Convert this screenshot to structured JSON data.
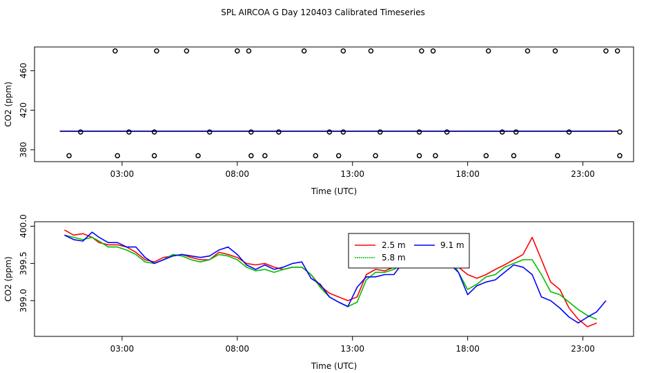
{
  "title": "SPL AIRCOA G  Day 120403  Calibrated Timeseries",
  "chart_data": [
    {
      "type": "scatter",
      "xlabel": "Time (UTC)",
      "ylabel": "CO2 (ppm)",
      "xlim": [
        -0.8,
        25.2
      ],
      "ylim": [
        368,
        484
      ],
      "xticks": [
        3,
        8,
        13,
        18,
        23
      ],
      "xtick_labels": [
        "03:00",
        "08:00",
        "13:00",
        "18:00",
        "23:00"
      ],
      "yticks": [
        380,
        420,
        460
      ],
      "ytick_labels": [
        "380",
        "420",
        "460"
      ],
      "markers_high": {
        "y": 480,
        "x": [
          2.7,
          4.5,
          5.8,
          8.0,
          8.5,
          10.9,
          12.6,
          13.8,
          16.0,
          16.5,
          18.9,
          20.6,
          21.8,
          24.0,
          24.5
        ]
      },
      "markers_mid": {
        "y": 398,
        "x": [
          1.2,
          3.3,
          4.4,
          6.8,
          8.6,
          9.8,
          12.0,
          12.6,
          14.2,
          15.9,
          17.1,
          19.5,
          20.1,
          22.4,
          24.6
        ]
      },
      "markers_low": {
        "y": 374,
        "x": [
          0.7,
          2.8,
          4.4,
          6.3,
          8.6,
          9.2,
          11.4,
          12.4,
          14.0,
          15.9,
          16.6,
          18.8,
          20.0,
          21.9,
          24.6
        ]
      },
      "line_value": 398.8,
      "series_colors": [
        "#ff0000",
        "#00bb00",
        "#0000ff"
      ]
    },
    {
      "type": "line",
      "xlabel": "Time (UTC)",
      "ylabel": "CO2 (ppm)",
      "xlim": [
        -0.8,
        25.2
      ],
      "ylim": [
        398.52,
        400.06
      ],
      "xticks": [
        3,
        8,
        13,
        18,
        23
      ],
      "xtick_labels": [
        "03:00",
        "08:00",
        "13:00",
        "18:00",
        "23:00"
      ],
      "yticks": [
        399.0,
        399.5,
        400.0
      ],
      "ytick_labels": [
        "399.0",
        "399.5",
        "400.0"
      ],
      "legend": {
        "placement": "top-center",
        "entries": [
          "2.5 m",
          "5.8 m",
          "9.1 m"
        ]
      },
      "series": [
        {
          "name": "2.5 m",
          "color": "#ff0000",
          "x": [
            0.5,
            0.9,
            1.3,
            1.7,
            2.0,
            2.4,
            2.8,
            3.2,
            3.6,
            4.0,
            4.4,
            4.8,
            5.2,
            5.6,
            6.0,
            6.4,
            6.8,
            7.2,
            7.6,
            8.0,
            8.4,
            8.8,
            9.2,
            9.6,
            10.0,
            10.4,
            10.8,
            11.2,
            11.6,
            12.0,
            12.4,
            12.8,
            13.2,
            13.6,
            14.0,
            14.4,
            14.8,
            15.2,
            15.6,
            16.0,
            16.4,
            16.8,
            17.2,
            17.6,
            18.0,
            18.4,
            18.8,
            19.2,
            19.6,
            20.0,
            20.4,
            20.8,
            21.2,
            21.6,
            22.0,
            22.4,
            22.8,
            23.2,
            23.6
          ],
          "values": [
            399.95,
            399.88,
            399.9,
            399.85,
            399.78,
            399.75,
            399.75,
            399.72,
            399.65,
            399.55,
            399.52,
            399.58,
            399.6,
            399.62,
            399.58,
            399.55,
            399.55,
            399.65,
            399.62,
            399.58,
            399.5,
            399.48,
            399.5,
            399.45,
            399.42,
            399.45,
            399.45,
            399.35,
            399.2,
            399.1,
            399.05,
            399.0,
            399.05,
            399.35,
            399.42,
            399.4,
            399.45,
            399.55,
            399.6,
            399.58,
            399.62,
            399.85,
            399.65,
            399.45,
            399.35,
            399.3,
            399.35,
            399.42,
            399.48,
            399.55,
            399.62,
            399.85,
            399.55,
            399.25,
            399.15,
            398.9,
            398.75,
            398.65,
            398.7
          ]
        },
        {
          "name": "5.8 m",
          "color": "#00bb00",
          "x": [
            0.5,
            0.9,
            1.3,
            1.7,
            2.0,
            2.4,
            2.8,
            3.2,
            3.6,
            4.0,
            4.4,
            4.8,
            5.2,
            5.6,
            6.0,
            6.4,
            6.8,
            7.2,
            7.6,
            8.0,
            8.4,
            8.8,
            9.2,
            9.6,
            10.0,
            10.4,
            10.8,
            11.2,
            11.6,
            12.0,
            12.4,
            12.8,
            13.2,
            13.6,
            14.0,
            14.4,
            14.8,
            15.2,
            15.6,
            16.0,
            16.4,
            16.8,
            17.2,
            17.6,
            18.0,
            18.4,
            18.8,
            19.2,
            19.6,
            20.0,
            20.4,
            20.8,
            21.2,
            21.6,
            22.0,
            22.4,
            22.8,
            23.2,
            23.6
          ],
          "values": [
            399.88,
            399.85,
            399.82,
            399.85,
            399.8,
            399.72,
            399.72,
            399.68,
            399.62,
            399.52,
            399.5,
            399.55,
            399.62,
            399.6,
            399.55,
            399.52,
            399.55,
            399.62,
            399.6,
            399.55,
            399.45,
            399.4,
            399.42,
            399.38,
            399.42,
            399.45,
            399.45,
            399.35,
            399.18,
            399.05,
            398.98,
            398.92,
            398.98,
            399.28,
            399.38,
            399.38,
            399.42,
            399.5,
            399.55,
            399.58,
            399.6,
            399.65,
            399.6,
            399.38,
            399.15,
            399.22,
            399.32,
            399.35,
            399.45,
            399.5,
            399.55,
            399.55,
            399.35,
            399.12,
            399.08,
            398.98,
            398.88,
            398.8,
            398.75
          ]
        },
        {
          "name": "9.1 m",
          "color": "#0000ff",
          "x": [
            0.5,
            0.9,
            1.3,
            1.7,
            2.0,
            2.4,
            2.8,
            3.2,
            3.6,
            4.0,
            4.4,
            4.8,
            5.2,
            5.6,
            6.0,
            6.4,
            6.8,
            7.2,
            7.6,
            8.0,
            8.4,
            8.8,
            9.2,
            9.6,
            10.0,
            10.4,
            10.8,
            11.2,
            11.6,
            12.0,
            12.4,
            12.8,
            13.2,
            13.6,
            14.0,
            14.4,
            14.8,
            15.2,
            15.6,
            16.0,
            16.4,
            16.8,
            17.2,
            17.6,
            18.0,
            18.4,
            18.8,
            19.2,
            19.6,
            20.0,
            20.4,
            20.8,
            21.2,
            21.6,
            22.0,
            22.4,
            22.8,
            23.2,
            23.6,
            24.0
          ],
          "values": [
            399.88,
            399.82,
            399.8,
            399.92,
            399.85,
            399.78,
            399.78,
            399.72,
            399.72,
            399.58,
            399.5,
            399.55,
            399.6,
            399.62,
            399.6,
            399.58,
            399.6,
            399.68,
            399.72,
            399.62,
            399.48,
            399.42,
            399.48,
            399.42,
            399.45,
            399.5,
            399.52,
            399.3,
            399.22,
            399.05,
            398.98,
            398.92,
            399.18,
            399.32,
            399.32,
            399.35,
            399.35,
            399.52,
            399.55,
            399.58,
            399.55,
            399.52,
            399.5,
            399.38,
            399.08,
            399.2,
            399.25,
            399.28,
            399.38,
            399.48,
            399.45,
            399.35,
            399.05,
            399.0,
            398.9,
            398.78,
            398.7,
            398.78,
            398.85,
            399.0
          ]
        }
      ]
    }
  ]
}
